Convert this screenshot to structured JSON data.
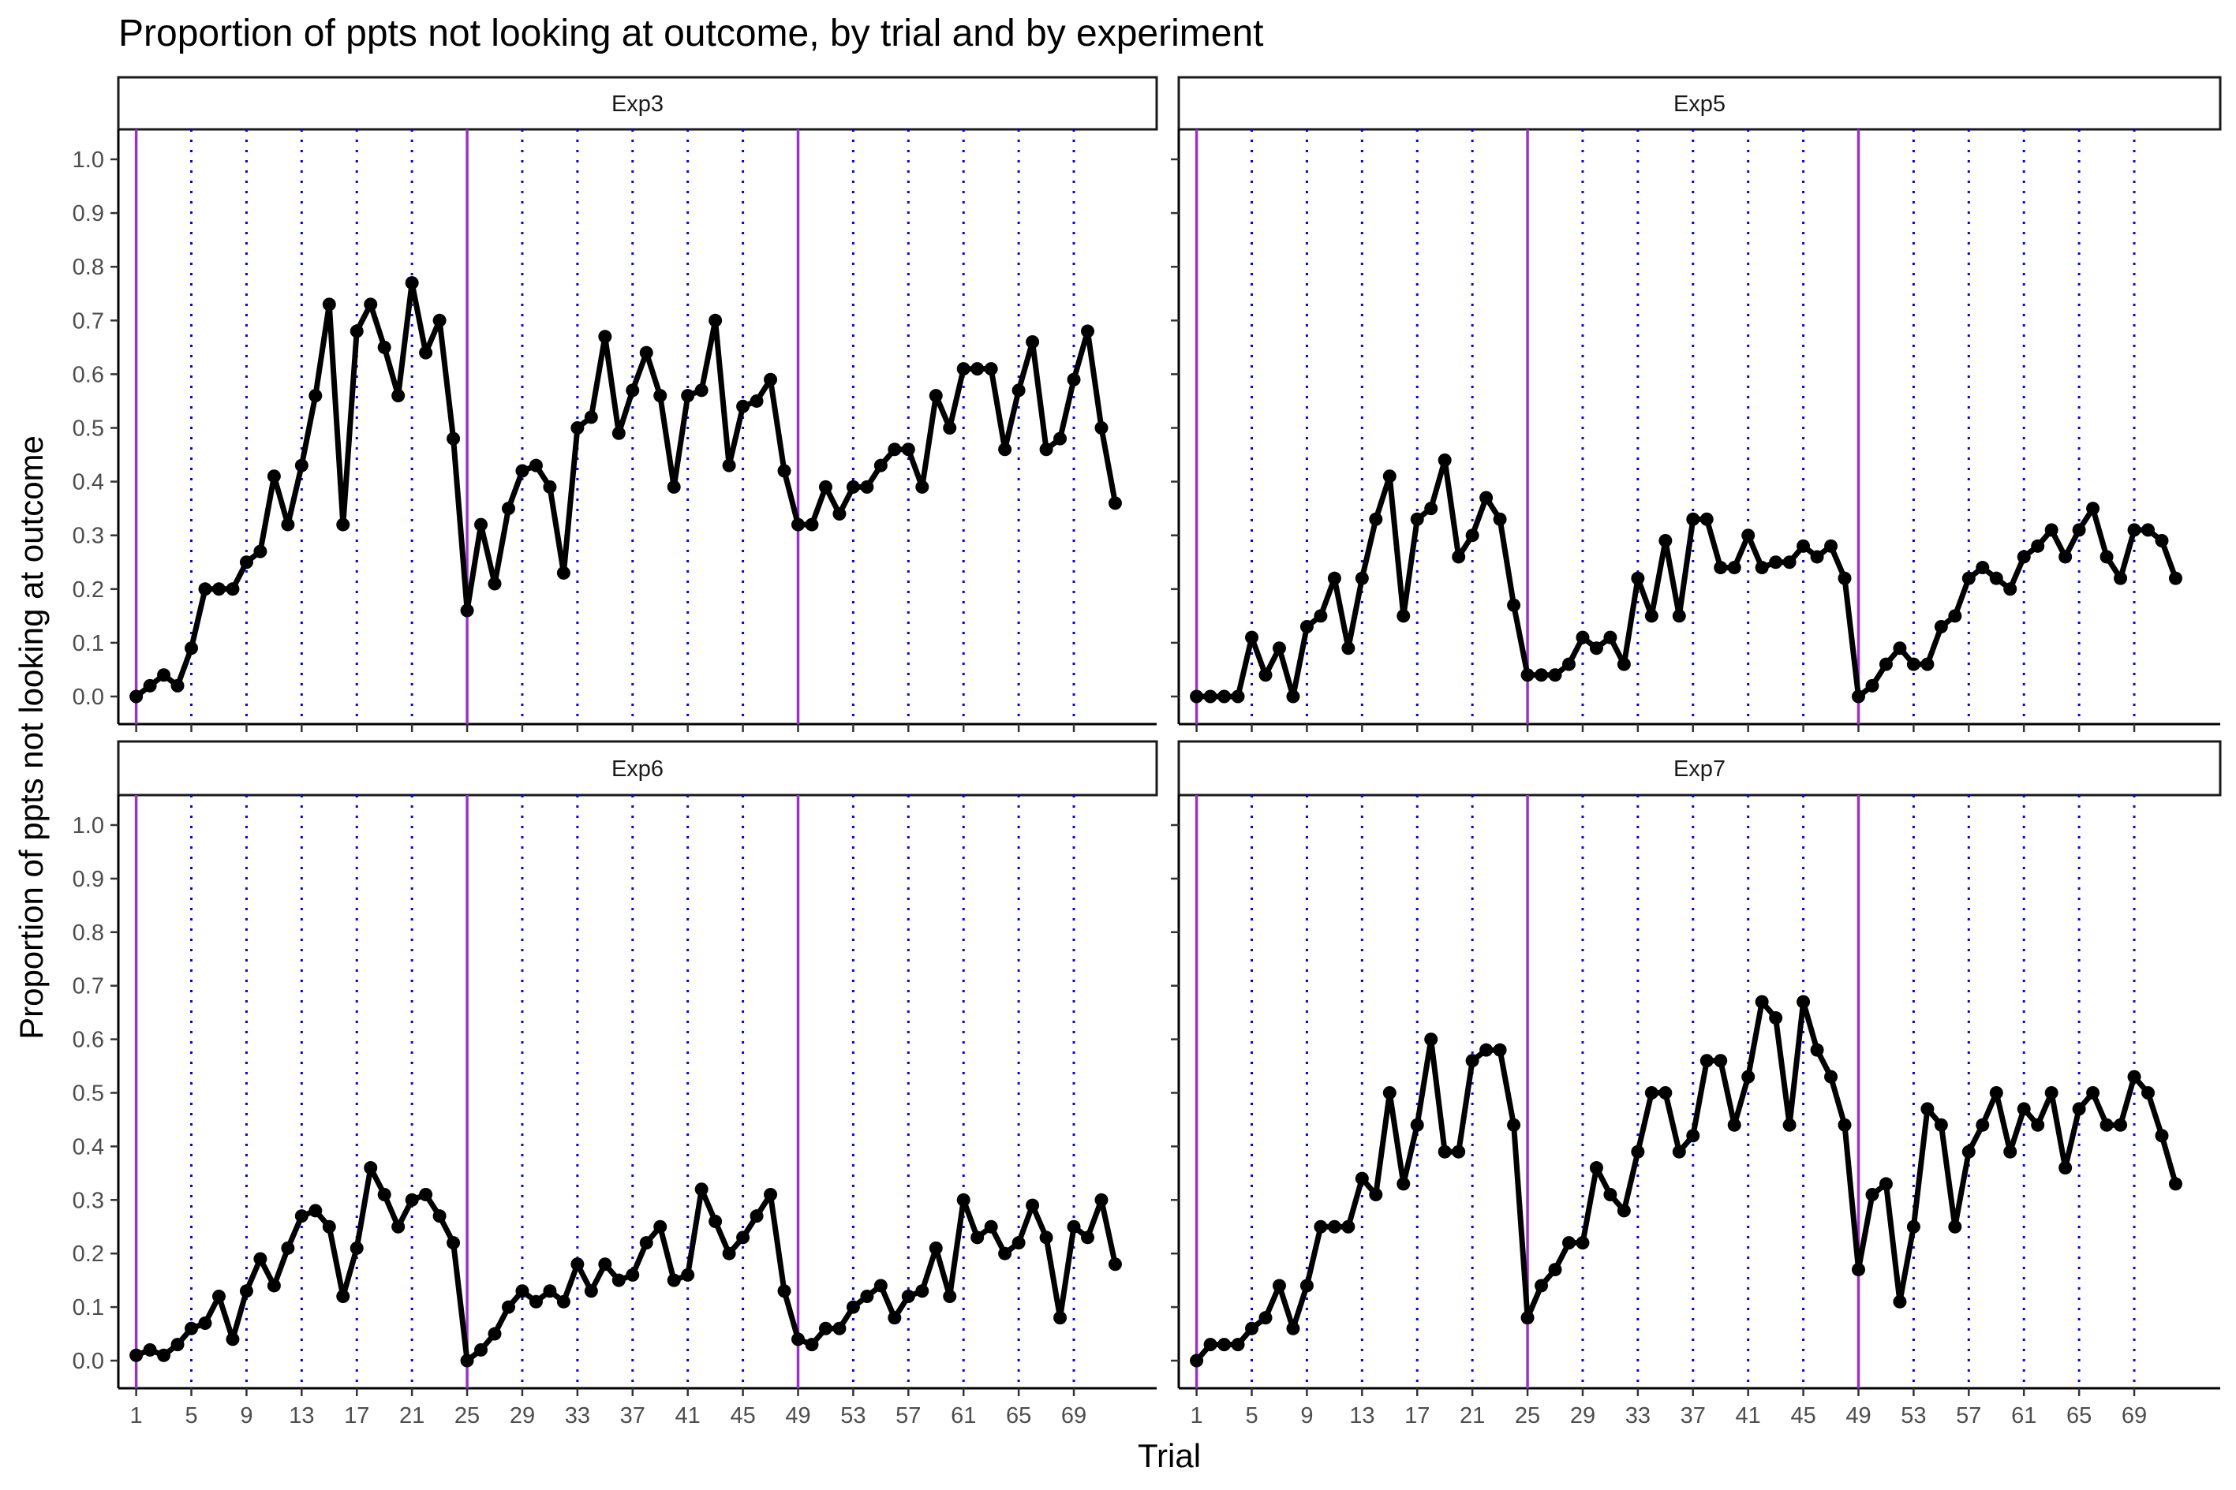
{
  "chart_data": {
    "type": "line",
    "title": "Proportion of ppts not looking at outcome, by trial and by experiment",
    "xlabel": "Trial",
    "ylabel": "Proportion of ppts not looking at outcome",
    "ylim": [
      0,
      1
    ],
    "y_ticks": [
      "0.0",
      "0.1",
      "0.2",
      "0.3",
      "0.4",
      "0.5",
      "0.6",
      "0.7",
      "0.8",
      "0.9",
      "1.0"
    ],
    "x_ticks": [
      1,
      5,
      9,
      13,
      17,
      21,
      25,
      29,
      33,
      37,
      41,
      45,
      49,
      53,
      57,
      61,
      65,
      69
    ],
    "xlim": [
      1,
      72
    ],
    "block_starts": [
      1,
      25,
      49
    ],
    "dotted_trials": [
      5,
      9,
      13,
      17,
      21,
      29,
      33,
      37,
      41,
      45,
      53,
      57,
      61,
      65,
      69
    ],
    "colors": {
      "line": "#000000",
      "block_line": "#9932CC",
      "dotted_line": "#0000FF"
    },
    "panels": [
      {
        "name": "Exp3",
        "x_start": 1,
        "values": [
          0.0,
          0.02,
          0.04,
          0.02,
          0.09,
          0.2,
          0.2,
          0.2,
          0.25,
          0.27,
          0.41,
          0.32,
          0.43,
          0.56,
          0.73,
          0.32,
          0.68,
          0.73,
          0.65,
          0.56,
          0.77,
          0.64,
          0.7,
          0.48,
          0.16,
          0.32,
          0.21,
          0.35,
          0.42,
          0.43,
          0.39,
          0.23,
          0.5,
          0.52,
          0.67,
          0.49,
          0.57,
          0.64,
          0.56,
          0.39,
          0.56,
          0.57,
          0.7,
          0.43,
          0.54,
          0.55,
          0.59,
          0.42,
          0.32,
          0.32,
          0.39,
          0.34,
          0.39,
          0.39,
          0.43,
          0.46,
          0.46,
          0.39,
          0.56,
          0.5,
          0.61,
          0.61,
          0.61,
          0.46,
          0.57,
          0.66,
          0.46,
          0.48,
          0.59,
          0.68,
          0.5,
          0.36
        ]
      },
      {
        "name": "Exp5",
        "x_start": 1,
        "values": [
          0.0,
          0.0,
          0.0,
          0.0,
          0.11,
          0.04,
          0.09,
          0.0,
          0.13,
          0.15,
          0.22,
          0.09,
          0.22,
          0.33,
          0.41,
          0.15,
          0.33,
          0.35,
          0.44,
          0.26,
          0.3,
          0.37,
          0.33,
          0.17,
          0.04,
          0.04,
          0.04,
          0.06,
          0.11,
          0.09,
          0.11,
          0.06,
          0.22,
          0.15,
          0.29,
          0.15,
          0.33,
          0.33,
          0.24,
          0.24,
          0.3,
          0.24,
          0.25,
          0.25,
          0.28,
          0.26,
          0.28,
          0.22,
          0.0,
          0.02,
          0.06,
          0.09,
          0.06,
          0.06,
          0.13,
          0.15,
          0.22,
          0.24,
          0.22,
          0.2,
          0.26,
          0.28,
          0.31,
          0.26,
          0.31,
          0.35,
          0.26,
          0.22,
          0.31,
          0.31,
          0.29,
          0.22
        ]
      },
      {
        "name": "Exp6",
        "x_start": 1,
        "values": [
          0.01,
          0.02,
          0.01,
          0.03,
          0.06,
          0.07,
          0.12,
          0.04,
          0.13,
          0.19,
          0.14,
          0.21,
          0.27,
          0.28,
          0.25,
          0.12,
          0.21,
          0.36,
          0.31,
          0.25,
          0.3,
          0.31,
          0.27,
          0.22,
          0.0,
          0.02,
          0.05,
          0.1,
          0.13,
          0.11,
          0.13,
          0.11,
          0.18,
          0.13,
          0.18,
          0.15,
          0.16,
          0.22,
          0.25,
          0.15,
          0.16,
          0.32,
          0.26,
          0.2,
          0.23,
          0.27,
          0.31,
          0.13,
          0.04,
          0.03,
          0.06,
          0.06,
          0.1,
          0.12,
          0.14,
          0.08,
          0.12,
          0.13,
          0.21,
          0.12,
          0.3,
          0.23,
          0.25,
          0.2,
          0.22,
          0.29,
          0.23,
          0.08,
          0.25,
          0.23,
          0.3,
          0.18
        ]
      },
      {
        "name": "Exp7",
        "x_start": 1,
        "values": [
          0.0,
          0.03,
          0.03,
          0.03,
          0.06,
          0.08,
          0.14,
          0.06,
          0.14,
          0.25,
          0.25,
          0.25,
          0.34,
          0.31,
          0.5,
          0.33,
          0.44,
          0.6,
          0.39,
          0.39,
          0.56,
          0.58,
          0.58,
          0.44,
          0.08,
          0.14,
          0.17,
          0.22,
          0.22,
          0.36,
          0.31,
          0.28,
          0.39,
          0.5,
          0.5,
          0.39,
          0.42,
          0.56,
          0.56,
          0.44,
          0.53,
          0.67,
          0.64,
          0.44,
          0.67,
          0.58,
          0.53,
          0.44,
          0.17,
          0.31,
          0.33,
          0.11,
          0.25,
          0.47,
          0.44,
          0.25,
          0.39,
          0.44,
          0.5,
          0.39,
          0.47,
          0.44,
          0.5,
          0.36,
          0.47,
          0.5,
          0.44,
          0.44,
          0.53,
          0.5,
          0.42,
          0.33
        ]
      }
    ]
  }
}
